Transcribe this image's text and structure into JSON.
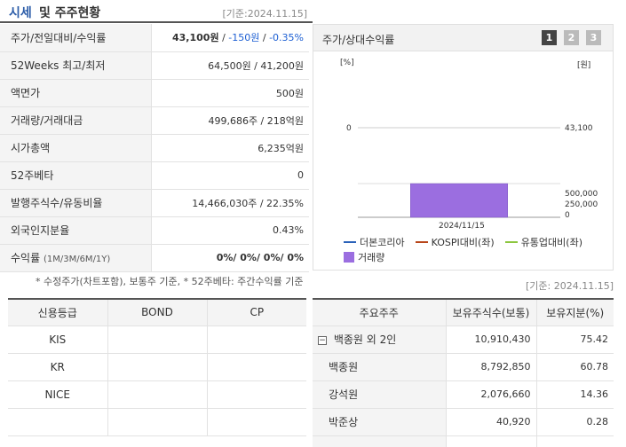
{
  "header": {
    "title_main": "시세",
    "title_sub": "및 주주현황",
    "date": "[기준:2024.11.15]"
  },
  "price_table": [
    {
      "label": "주가/전일대비/수익률",
      "price": "43,100원",
      "change": "-150원",
      "pct": "-0.35%"
    },
    {
      "label": "52Weeks 최고/최저",
      "value": "64,500원 / 41,200원"
    },
    {
      "label": "액면가",
      "value": "500원"
    },
    {
      "label": "거래량/거래대금",
      "value": "499,686주 / 218억원"
    },
    {
      "label": "시가총액",
      "value": "6,235억원"
    },
    {
      "label": "52주베타",
      "value": "0"
    },
    {
      "label": "발행주식수/유동비율",
      "value": "14,466,030주 / 22.35%"
    },
    {
      "label": "외국인지분율",
      "value": "0.43%"
    },
    {
      "label": "수익률",
      "label_suffix": "(1M/3M/6M/1Y)",
      "value": "0%/ 0%/ 0%/ 0%"
    }
  ],
  "note": "* 수정주가(차트포함), 보통주 기준, * 52주베타: 주간수익률 기준",
  "chart_panel": {
    "title": "주가/상대수익률",
    "buttons": [
      "1",
      "2",
      "3"
    ],
    "unit_left": "[%]",
    "unit_right": "[원]",
    "left_tick": "0",
    "right_tick": "43,100",
    "volume_ticks": [
      "500,000",
      "250,000",
      "0"
    ],
    "x_label": "2024/11/15",
    "bar_color": "#9b6ee0",
    "legend": [
      {
        "label": "더본코리아",
        "color": "#2a62b9"
      },
      {
        "label": "KOSPI대비(좌)",
        "color": "#b8461a"
      },
      {
        "label": "유통업대비(좌)",
        "color": "#8cc63f"
      },
      {
        "label": "거래량",
        "color": "#9b6ee0"
      }
    ]
  },
  "chart_data": {
    "type": "bar",
    "categories": [
      "2024/11/15"
    ],
    "series": [
      {
        "name": "거래량",
        "values": [
          499686
        ]
      }
    ],
    "price_line": [
      {
        "name": "더본코리아",
        "values": [
          43100
        ]
      }
    ],
    "xlabel": "",
    "ylabel": "",
    "ylim": [
      0,
      500000
    ]
  },
  "date2": "[기준: 2024.11.15]",
  "credit_table": {
    "headers": [
      "신용등급",
      "BOND",
      "CP"
    ],
    "rows": [
      {
        "agency": "KIS",
        "bond": "",
        "cp": ""
      },
      {
        "agency": "KR",
        "bond": "",
        "cp": ""
      },
      {
        "agency": "NICE",
        "bond": "",
        "cp": ""
      },
      {
        "agency": "",
        "bond": "",
        "cp": ""
      }
    ]
  },
  "holders_table": {
    "headers": [
      "주요주주",
      "보유주식수(보통)",
      "보유지분(%)"
    ],
    "rows": [
      {
        "name": "백종원 외 2인",
        "shares": "10,910,430",
        "pct": "75.42",
        "group": true
      },
      {
        "name": "백종원",
        "shares": "8,792,850",
        "pct": "60.78"
      },
      {
        "name": "강석원",
        "shares": "2,076,660",
        "pct": "14.36"
      },
      {
        "name": "박준상",
        "shares": "40,920",
        "pct": "0.28"
      },
      {
        "name": "",
        "shares": "",
        "pct": ""
      }
    ]
  }
}
